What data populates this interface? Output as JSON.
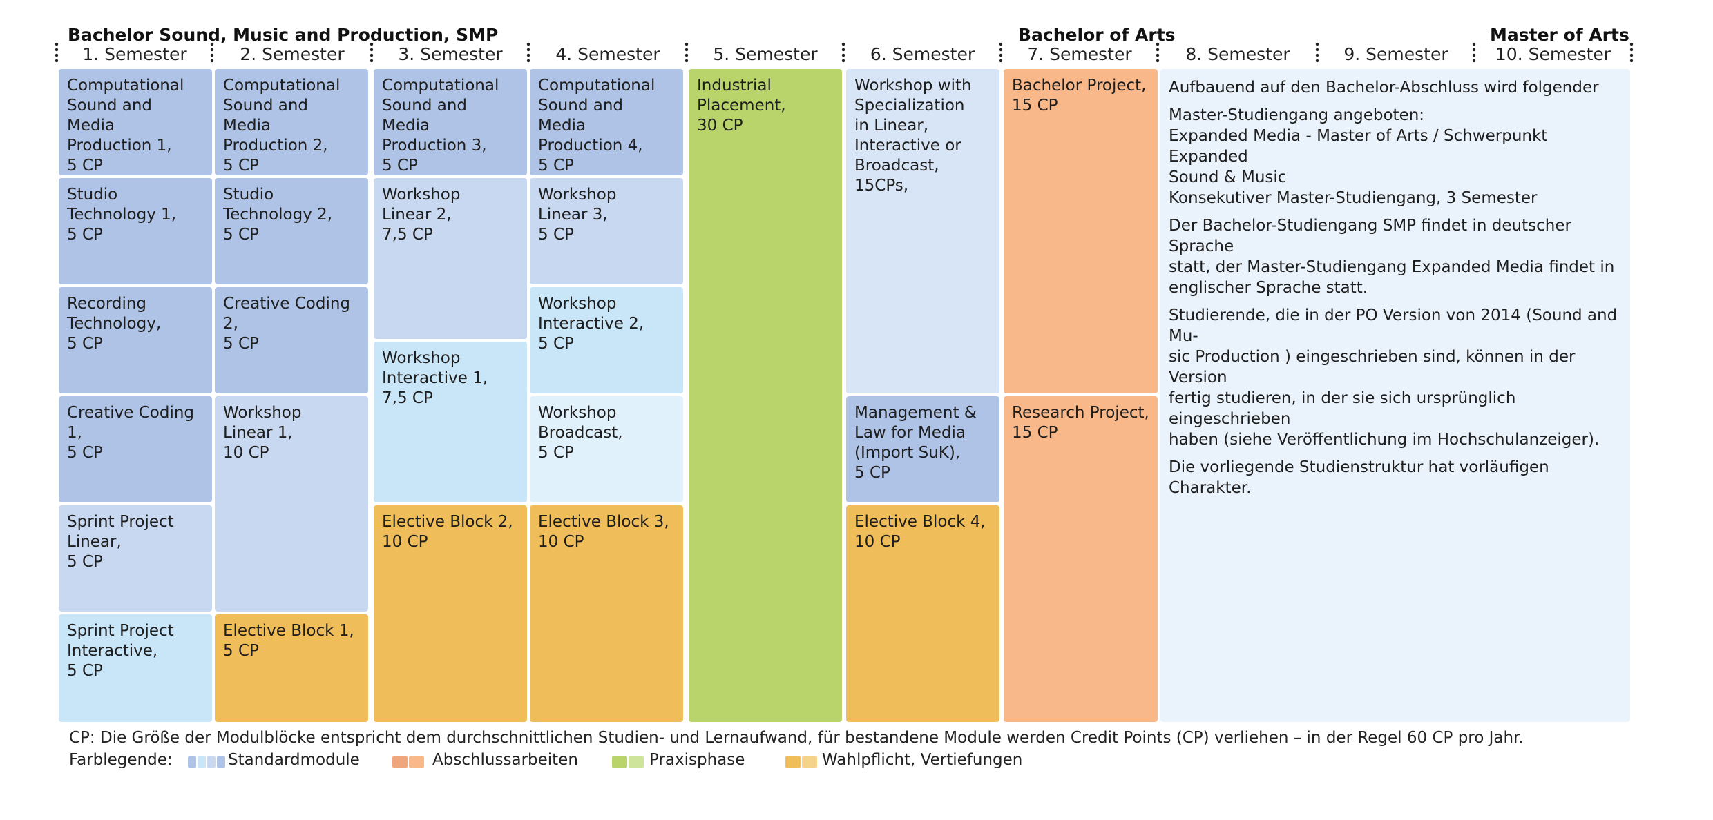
{
  "titles": {
    "bachelor_program": "Bachelor Sound, Music and Production, SMP",
    "bachelor_degree": "Bachelor of Arts",
    "master_degree": "Master of Arts"
  },
  "semesters": [
    "1. Semester",
    "2. Semester",
    "3. Semester",
    "4. Semester",
    "5. Semester",
    "6. Semester",
    "7. Semester",
    "8. Semester",
    "9. Semester",
    "10. Semester"
  ],
  "modules": {
    "csmp1": "Computational\nSound and Media\nProduction 1,\n5 CP",
    "studio1": "Studio\nTechnology 1,\n5 CP",
    "recording": "Recording\nTechnology,\n5 CP",
    "creative1": "Creative Coding 1,\n5 CP",
    "sprint_linear": "Sprint Project\nLinear,\n5 CP",
    "sprint_interactive": "Sprint Project\nInteractive,\n5 CP",
    "csmp2": "Computational\nSound and Media\nProduction 2,\n5 CP",
    "studio2": "Studio\nTechnology 2,\n5 CP",
    "creative2": "Creative Coding 2,\n5 CP",
    "ws_linear1": "Workshop\nLinear 1,\n10 CP",
    "elective1": "Elective Block 1,\n5 CP",
    "csmp3": "Computational\nSound and Media\nProduction 3,\n5 CP",
    "ws_linear2": "Workshop\nLinear 2,\n7,5 CP",
    "ws_interactive1": "Workshop\nInteractive 1,\n7,5 CP",
    "elective2": "Elective Block 2,\n10 CP",
    "csmp4": "Computational\nSound and Media\nProduction 4,\n5 CP",
    "ws_linear3": "Workshop\nLinear 3,\n5 CP",
    "ws_interactive2": "Workshop\nInteractive 2,\n5 CP",
    "ws_broadcast": "Workshop\nBroadcast,\n5 CP",
    "elective3": "Elective Block 3,\n10 CP",
    "industrial": "Industrial\nPlacement,\n30 CP",
    "ws_special": "Workshop with\nSpecialization\nin Linear,\nInteractive or\nBroadcast,\n15CPs,",
    "management": "Management &\nLaw for Media\n(Import SuK),\n5 CP",
    "elective4": "Elective Block 4,\n10 CP",
    "bachelor_project": "Bachelor Project,\n15 CP",
    "research_project": "Research Project,\n15 CP"
  },
  "master_info": [
    "Aufbauend auf den Bachelor-Abschluss wird folgender",
    "Master-Studiengang angeboten:\nExpanded Media - Master of Arts / Schwerpunkt Expanded\nSound & Music\nKonsekutiver Master-Studiengang, 3 Semester",
    "Der Bachelor-Studiengang SMP findet in deutscher Sprache\nstatt, der Master-Studiengang Expanded Media findet in\nenglischer Sprache statt.",
    "Studierende, die in der PO Version von 2014 (Sound and Mu-\nsic Production ) eingeschrieben sind, können in der Version\nfertig studieren, in der sie sich ursprünglich eingeschrieben\nhaben (siehe Veröffentlichung im Hochschulanzeiger).",
    "Die vorliegende Studienstruktur hat vorläufigen Charakter."
  ],
  "footer": {
    "cp_note": "CP: Die Größe der Modulblöcke entspricht dem durchschnittlichen Studien- und Lernaufwand, für bestandene Module werden Credit Points (CP) verliehen – in der Regel 60 CP pro Jahr.",
    "legend_label": "Farblegende:",
    "legend": [
      "Standardmodule",
      "Abschlussarbeiten",
      "Praxisphase",
      "Wahlpflicht, Vertiefungen"
    ]
  },
  "colors": {
    "standard_dark": "#aec3e6",
    "standard_mid": "#c7d8f0",
    "standard_light": "#c9e5f8",
    "standard_pale": "#e1f1fc",
    "thesis": "#f8b889",
    "practice": "#b9d46b",
    "elective": "#efbd59",
    "master_panel": "#eaf2fb"
  }
}
